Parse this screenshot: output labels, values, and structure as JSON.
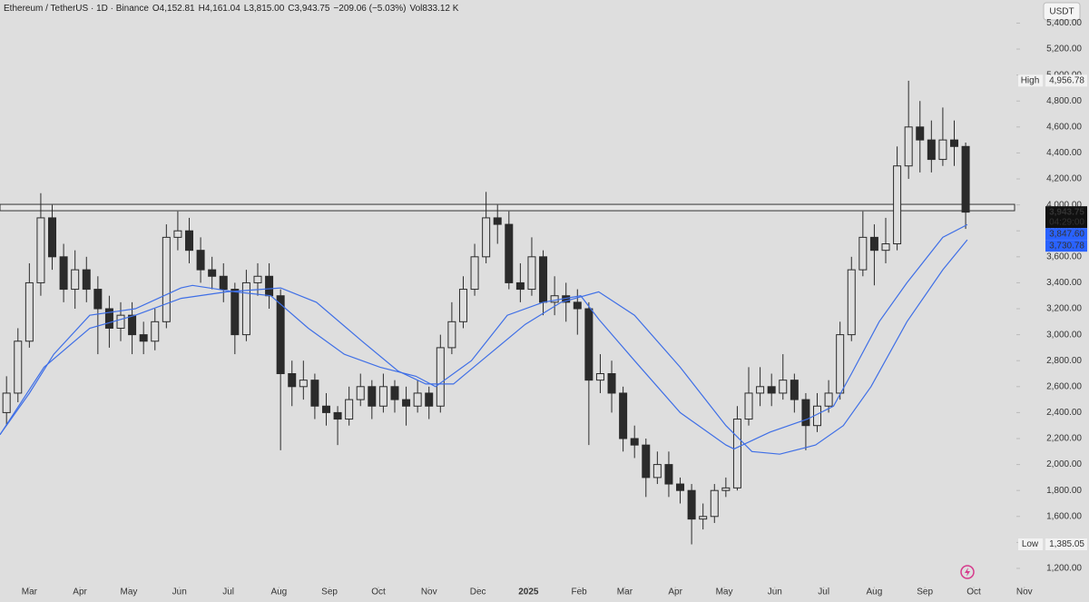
{
  "chart_data": {
    "type": "candlestick",
    "header": [
      "Ethereum / TetherUS · 1D · Binance",
      "O4,152.81",
      "H4,161.04",
      "L3,815.00",
      "C3,943.75",
      "−209.06 (−5.03%)",
      "Vol833.12 K"
    ],
    "currency": "USDT",
    "color": "#2b2b2b",
    "x": [
      -14,
      -7,
      0,
      7,
      14,
      21,
      28,
      35,
      42,
      49,
      56,
      63,
      70,
      77,
      84,
      91,
      98,
      105,
      112,
      119,
      126,
      133,
      140,
      147,
      154,
      161,
      168,
      175,
      182,
      189,
      196,
      203,
      210,
      217,
      224,
      231,
      238,
      245,
      252,
      259,
      266,
      273,
      280,
      287,
      294,
      301,
      308,
      315,
      322,
      329,
      336,
      343,
      350,
      357,
      364,
      371,
      378,
      385,
      392,
      399,
      406,
      413,
      420,
      427,
      434,
      441,
      448,
      455,
      462,
      469,
      476,
      483,
      490,
      497,
      504,
      511,
      518,
      525,
      532,
      539,
      546,
      553,
      560,
      567,
      574
    ],
    "open": [
      2400,
      2550,
      2950,
      3400,
      3900,
      3600,
      3350,
      3500,
      3350,
      3200,
      3050,
      3150,
      3000,
      2950,
      3100,
      3750,
      3800,
      3650,
      3500,
      3450,
      3350,
      3000,
      3400,
      3450,
      3300,
      2700,
      2600,
      2650,
      2450,
      2400,
      2350,
      2500,
      2600,
      2450,
      2600,
      2500,
      2450,
      2550,
      2450,
      2900,
      3100,
      3350,
      3600,
      3900,
      3850,
      3400,
      3350,
      3600,
      3250,
      3300,
      3250,
      3200,
      2650,
      2700,
      2550,
      2200,
      2150,
      1900,
      2000,
      1850,
      1800,
      1580,
      1600,
      1800,
      1820,
      2350,
      2550,
      2600,
      2550,
      2650,
      2500,
      2300,
      2450,
      2550,
      3000,
      3500,
      3750,
      3650,
      3700,
      4300,
      4600,
      4500,
      4350,
      4500,
      4450
    ],
    "high": [
      2680,
      3050,
      3550,
      4090,
      4000,
      3700,
      3650,
      3600,
      3450,
      3300,
      3250,
      3250,
      3100,
      3200,
      3850,
      3950,
      3900,
      3750,
      3600,
      3550,
      3400,
      3500,
      3550,
      3550,
      3350,
      2800,
      2800,
      2700,
      2550,
      2450,
      2600,
      2700,
      2650,
      2700,
      2650,
      2600,
      2650,
      2600,
      3000,
      3250,
      3450,
      3700,
      4100,
      4000,
      3950,
      3550,
      3750,
      3650,
      3450,
      3400,
      3350,
      3250,
      2850,
      2800,
      2600,
      2300,
      2200,
      2100,
      2100,
      1900,
      1850,
      1700,
      1850,
      1900,
      2450,
      2750,
      2750,
      2700,
      2850,
      2700,
      2550,
      2550,
      2650,
      3100,
      3600,
      3950,
      3850,
      3900,
      4450,
      4956,
      4800,
      4650,
      4750,
      4650,
      4480
    ],
    "low": [
      2300,
      2480,
      2900,
      3300,
      3500,
      3250,
      3200,
      3250,
      2850,
      2900,
      2950,
      2850,
      2850,
      2880,
      3050,
      3650,
      3550,
      3400,
      3350,
      3250,
      2850,
      2950,
      3300,
      3200,
      2110,
      2450,
      2500,
      2350,
      2300,
      2150,
      2300,
      2450,
      2350,
      2400,
      2400,
      2300,
      2400,
      2350,
      2400,
      2850,
      3050,
      3300,
      3550,
      3700,
      3350,
      3250,
      3300,
      3150,
      3150,
      3100,
      3000,
      2150,
      2550,
      2400,
      2100,
      2050,
      1750,
      1850,
      1750,
      1700,
      1385,
      1500,
      1550,
      1750,
      1800,
      2300,
      2450,
      2450,
      2500,
      2400,
      2110,
      2250,
      2400,
      2500,
      2950,
      3450,
      3380,
      3550,
      3650,
      4200,
      4250,
      4250,
      4300,
      4300,
      3815
    ],
    "close": [
      2550,
      2950,
      3400,
      3900,
      3600,
      3350,
      3500,
      3350,
      3200,
      3050,
      3150,
      3000,
      2950,
      3100,
      3750,
      3800,
      3650,
      3500,
      3450,
      3350,
      3000,
      3400,
      3450,
      3300,
      2700,
      2600,
      2650,
      2450,
      2400,
      2350,
      2500,
      2600,
      2450,
      2600,
      2500,
      2450,
      2550,
      2450,
      2900,
      3100,
      3350,
      3600,
      3900,
      3850,
      3400,
      3350,
      3600,
      3250,
      3300,
      3250,
      3200,
      2650,
      2700,
      2550,
      2200,
      2150,
      1900,
      2000,
      1850,
      1800,
      1580,
      1600,
      1800,
      1820,
      2350,
      2550,
      2600,
      2550,
      2650,
      2500,
      2300,
      2450,
      2550,
      3000,
      3500,
      3750,
      3650,
      3700,
      4300,
      4600,
      4500,
      4350,
      4500,
      4450,
      3944
    ],
    "lines": [
      {
        "color": "#3f6fe6",
        "x": [
          -18,
          0,
          15,
          37,
          65,
          93,
          100,
          126,
          148,
          171,
          193,
          215,
          237,
          249,
          271,
          293,
          315,
          338,
          349,
          371,
          399,
          427,
          432,
          454,
          477,
          493,
          504,
          521,
          538,
          560,
          575
        ],
        "values": [
          2230,
          2550,
          2850,
          3150,
          3200,
          3360,
          3380,
          3330,
          3300,
          3050,
          2850,
          2750,
          2680,
          2600,
          2800,
          3150,
          3250,
          3300,
          3120,
          2800,
          2400,
          2150,
          2120,
          2250,
          2350,
          2450,
          2700,
          3100,
          3400,
          3750,
          3847.6
        ]
      },
      {
        "color": "#3f6fe6",
        "x": [
          -18,
          9,
          37,
          65,
          93,
          121,
          154,
          176,
          204,
          226,
          243,
          260,
          282,
          304,
          326,
          349,
          371,
          399,
          427,
          443,
          460,
          482,
          499,
          516,
          538,
          560,
          575
        ],
        "values": [
          2230,
          2750,
          3050,
          3150,
          3280,
          3330,
          3360,
          3250,
          2950,
          2720,
          2620,
          2620,
          2850,
          3080,
          3250,
          3330,
          3150,
          2750,
          2300,
          2100,
          2080,
          2150,
          2300,
          2600,
          3100,
          3500,
          3730.78
        ]
      }
    ],
    "zone": [
      3955,
      4004
    ],
    "markers": [
      {
        "name": "High",
        "value": 4956.78,
        "label": "4,956.78",
        "bg": "#f2f2f2",
        "fg": "#222"
      },
      {
        "value": 3943.75,
        "label": "3,943.75",
        "countdown": "04:29:00",
        "bg": "#111111",
        "fg": "#ffffff"
      },
      {
        "value": 3847.6,
        "label": "3,847.60",
        "bg": "#2962ff",
        "fg": "#ffffff"
      },
      {
        "value": 3730.78,
        "label": "3,730.78",
        "bg": "#2962ff",
        "fg": "#ffffff"
      },
      {
        "name": "Low",
        "value": 1385.05,
        "label": "1,385.05",
        "bg": "#f2f2f2",
        "fg": "#222"
      }
    ],
    "xlim": [
      -18,
      604
    ],
    "ylim": [
      1067,
      5578
    ],
    "xticks": [
      {
        "value": 0,
        "label": "Mar"
      },
      {
        "value": 31,
        "label": "Apr"
      },
      {
        "value": 61,
        "label": "May"
      },
      {
        "value": 92,
        "label": "Jun"
      },
      {
        "value": 122,
        "label": "Jul"
      },
      {
        "value": 153,
        "label": "Aug"
      },
      {
        "value": 184,
        "label": "Sep"
      },
      {
        "value": 214,
        "label": "Oct"
      },
      {
        "value": 245,
        "label": "Nov"
      },
      {
        "value": 275,
        "label": "Dec"
      },
      {
        "value": 306,
        "label": "2025"
      },
      {
        "value": 337,
        "label": "Feb"
      },
      {
        "value": 365,
        "label": "Mar"
      },
      {
        "value": 396,
        "label": "Apr"
      },
      {
        "value": 426,
        "label": "May"
      },
      {
        "value": 457,
        "label": "Jun"
      },
      {
        "value": 487,
        "label": "Jul"
      },
      {
        "value": 518,
        "label": "Aug"
      },
      {
        "value": 549,
        "label": "Sep"
      },
      {
        "value": 579,
        "label": "Oct"
      },
      {
        "value": 610,
        "label": "Nov"
      }
    ],
    "yticks": [
      {
        "value": 1200,
        "label": "1,200.00"
      },
      {
        "value": 1400,
        "label": "1,400.00"
      },
      {
        "value": 1600,
        "label": "1,600.00"
      },
      {
        "value": 1800,
        "label": "1,800.00"
      },
      {
        "value": 2000,
        "label": "2,000.00"
      },
      {
        "value": 2200,
        "label": "2,200.00"
      },
      {
        "value": 2400,
        "label": "2,400.00"
      },
      {
        "value": 2600,
        "label": "2,600.00"
      },
      {
        "value": 2800,
        "label": "2,800.00"
      },
      {
        "value": 3000,
        "label": "3,000.00"
      },
      {
        "value": 3200,
        "label": "3,200.00"
      },
      {
        "value": 3400,
        "label": "3,400.00"
      },
      {
        "value": 3600,
        "label": "3,600.00"
      },
      {
        "value": 3800,
        "label": "3,800.00"
      },
      {
        "value": 4000,
        "label": "4,000.00"
      },
      {
        "value": 4200,
        "label": "4,200.00"
      },
      {
        "value": 4400,
        "label": "4,400.00"
      },
      {
        "value": 4600,
        "label": "4,600.00"
      },
      {
        "value": 4800,
        "label": "4,800.00"
      },
      {
        "value": 5000,
        "label": "5,000.00"
      },
      {
        "value": 5200,
        "label": "5,200.00"
      },
      {
        "value": 5400,
        "label": "5,400.00"
      }
    ]
  }
}
